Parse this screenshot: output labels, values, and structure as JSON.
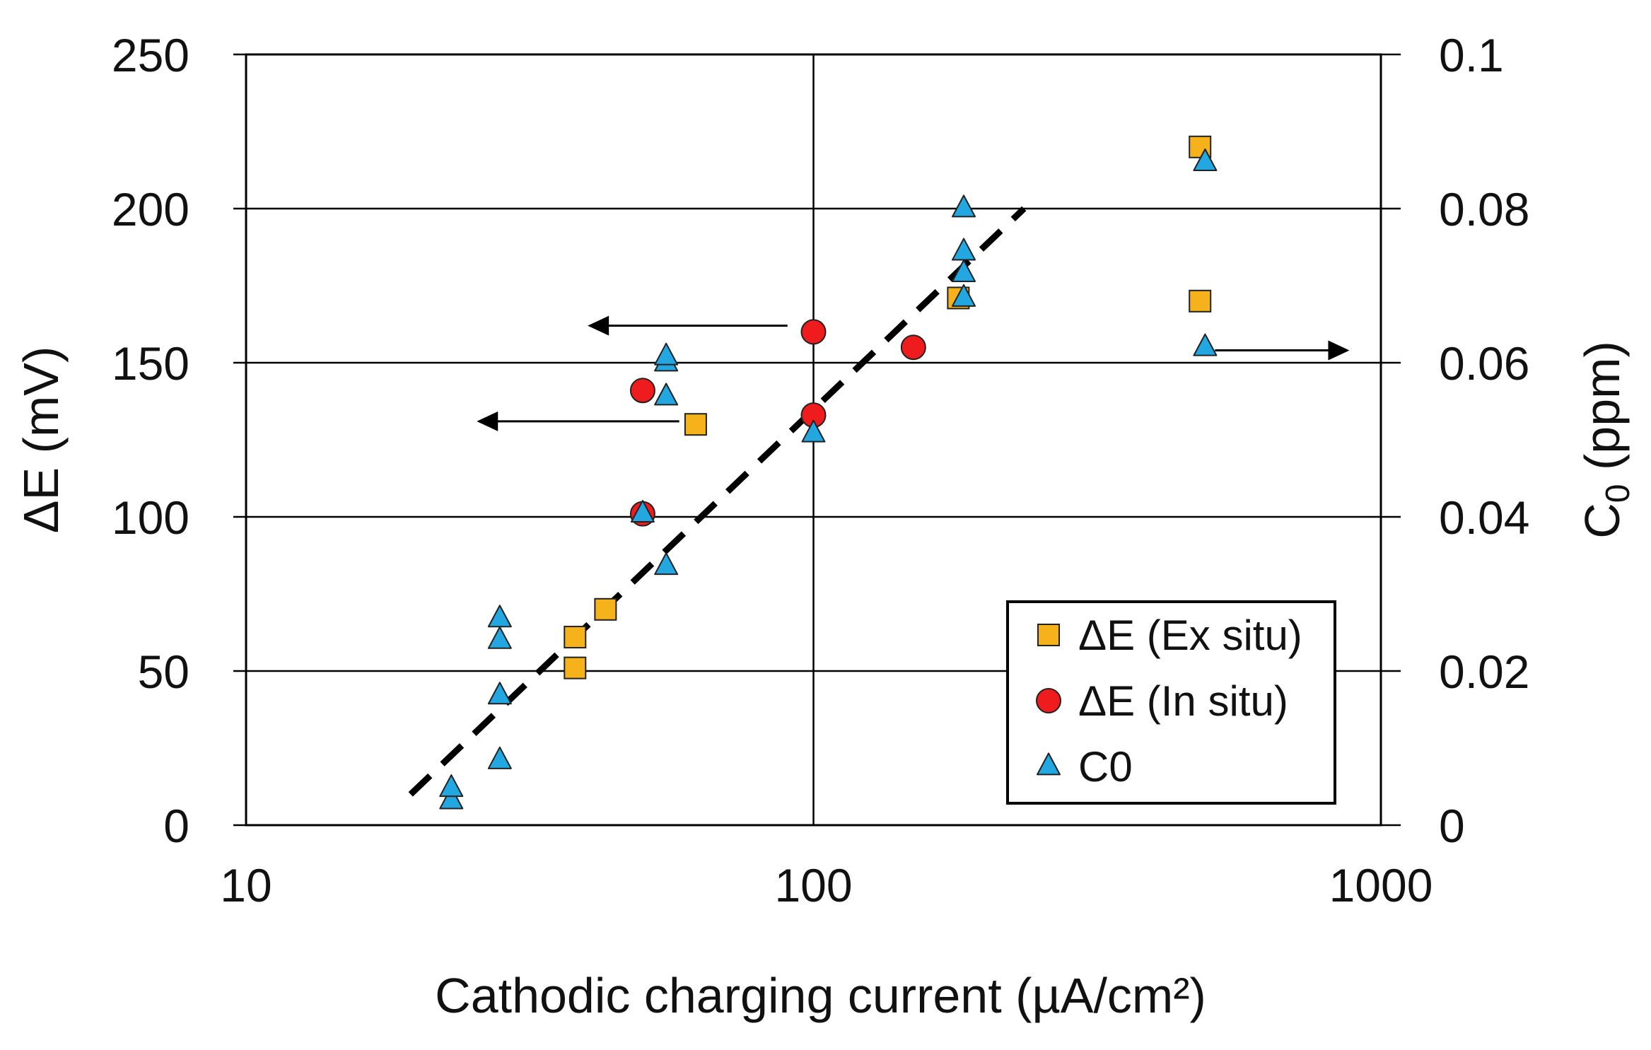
{
  "chart_data": {
    "type": "scatter",
    "title": "",
    "xlabel": "Cathodic charging current (µA/cm²)",
    "ylabel": "ΔE (mV)",
    "y2label": {
      "main": "C",
      "sub": "0",
      "unit": " (ppm)"
    },
    "xscale": "log",
    "xlim": [
      10,
      1000
    ],
    "ylim": [
      0,
      250
    ],
    "y2lim": [
      0,
      0.1
    ],
    "x_ticks": [
      "10",
      "100",
      "1000"
    ],
    "x_tick_values": [
      10,
      100,
      1000
    ],
    "y_ticks": [
      "0",
      "50",
      "100",
      "150",
      "200",
      "250"
    ],
    "y_tick_values": [
      0,
      50,
      100,
      150,
      200,
      250
    ],
    "y2_ticks": [
      "0",
      "0.02",
      "0.04",
      "0.06",
      "0.08",
      "0.1"
    ],
    "y2_tick_values": [
      0,
      0.02,
      0.04,
      0.06,
      0.08,
      0.1
    ],
    "grid": "horizontal at y ticks, vertical at x = 100",
    "legend_position": "bottom-right",
    "series": [
      {
        "name": "ΔE (Ex situ)",
        "marker": "square",
        "color": "#f5b21a",
        "axis": "left",
        "points": [
          [
            38,
            51
          ],
          [
            38,
            61
          ],
          [
            43,
            70
          ],
          [
            62,
            130
          ],
          [
            180,
            171
          ],
          [
            480,
            170
          ],
          [
            480,
            220
          ]
        ]
      },
      {
        "name": "ΔE (In situ)",
        "marker": "circle",
        "color": "#ee1c1c",
        "axis": "left",
        "points": [
          [
            50,
            101
          ],
          [
            50,
            141
          ],
          [
            100,
            133
          ],
          [
            100,
            160
          ],
          [
            150,
            155
          ]
        ]
      },
      {
        "name": "C0",
        "marker": "triangle",
        "color": "#22a7e0",
        "axis": "left",
        "points": [
          [
            23,
            8
          ],
          [
            23,
            12
          ],
          [
            28,
            21
          ],
          [
            28,
            42
          ],
          [
            28,
            60
          ],
          [
            28,
            67
          ],
          [
            50,
            101
          ],
          [
            55,
            84
          ],
          [
            55,
            139
          ],
          [
            55,
            150
          ],
          [
            55,
            152
          ],
          [
            100,
            127
          ],
          [
            184,
            171
          ],
          [
            184,
            179
          ],
          [
            184,
            186
          ],
          [
            184,
            200
          ],
          [
            490,
            155
          ],
          [
            490,
            215
          ]
        ]
      }
    ],
    "trendline": {
      "style": "dashed",
      "color": "#000000",
      "points": [
        [
          19.5,
          10
        ],
        [
          235,
          200
        ]
      ]
    },
    "annotations": [
      {
        "type": "arrow",
        "direction": "left",
        "from": [
          90,
          162
        ],
        "to": [
          40,
          162
        ]
      },
      {
        "type": "arrow",
        "direction": "left",
        "from": [
          58,
          131
        ],
        "to": [
          25.5,
          131
        ]
      },
      {
        "type": "arrow",
        "direction": "right",
        "from": [
          510,
          154
        ],
        "to": [
          880,
          154
        ]
      }
    ],
    "colors": {
      "grid": "#000000",
      "background": "#ffffff",
      "marker_stroke": "#222222"
    }
  }
}
